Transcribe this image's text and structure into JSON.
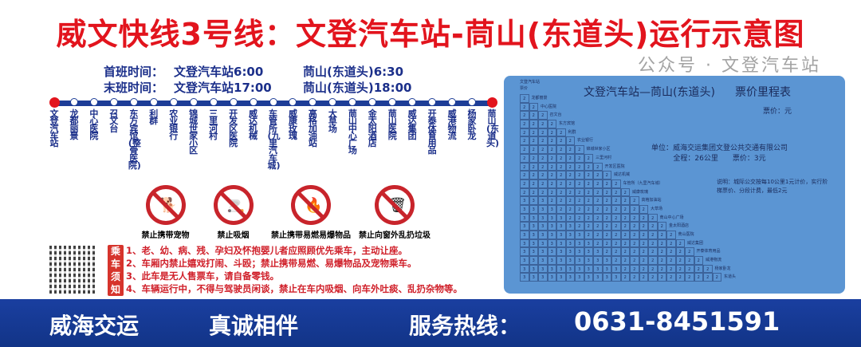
{
  "title": "威文快线3号线：文登汽车站-茼山(东道头)运行示意图",
  "schedule": {
    "first": {
      "label": "首班时间：",
      "from": "文登汽车站6:00",
      "to": "茼山(东道头)6:30"
    },
    "last": {
      "label": "末班时间：",
      "from": "文登汽车站17:00",
      "to": "茼山(东道头)18:00"
    }
  },
  "stations": [
    "文登汽车站",
    "龙都丽景",
    "中心医院",
    "召文台",
    "东方宾馆(整骨医院)",
    "利群",
    "农业银行",
    "锦城世家小区",
    "三里河村",
    "开发区医院",
    "威达机械",
    "车管所(九里汽车城)",
    "威康玫瑰",
    "高格加油站",
    "大草场",
    "茼山中心广场",
    "金太阳酒店",
    "茼山医院",
    "威达集团",
    "开泰体育用品",
    "威港物流",
    "杨家卧龙",
    "茼山(东道头)"
  ],
  "signs": [
    {
      "icon": "no-pets-icon",
      "label": "禁止携带宠物"
    },
    {
      "icon": "no-smoking-icon",
      "label": "禁止吸烟"
    },
    {
      "icon": "no-flammables-icon",
      "label": "禁止携带易燃易爆物品"
    },
    {
      "icon": "no-littering-icon",
      "label": "禁止向窗外乱扔垃圾"
    }
  ],
  "notice": {
    "tag": "乘车须知",
    "items": [
      "1、老、幼、病、残、孕妇及怀抱婴儿者应照顾优先乘车，主动让座。",
      "2、车厢内禁止嬉戏打闹、斗殴；禁止携带易燃、易爆物品及宠物乘车。",
      "3、此车是无人售票车，请自备零钱。",
      "4、车辆运行中，不得与驾驶员闲谈，禁止在车内吸烟、向车外吐痰、乱扔杂物等。"
    ]
  },
  "fare_table": {
    "title": "文登汽车站—茼山(东道头)",
    "title2": "票价里程表",
    "unit": "票价：元",
    "corner": [
      "文登汽车站",
      "票价"
    ],
    "company": "单位：威海交运集团文登公共交通有限公司",
    "summary": "全程：26公里　　票价：3元",
    "desc": "说明：城际公交按每10公里1元计价，实行阶梯票价、分段计费，最低2元",
    "rows": [
      {
        "name": "龙都丽景",
        "fares": "2"
      },
      {
        "name": "中心医院",
        "fares": "22"
      },
      {
        "name": "召文台",
        "fares": "222"
      },
      {
        "name": "东方宾馆",
        "fares": "2222"
      },
      {
        "name": "利群",
        "fares": "22222"
      },
      {
        "name": "农业银行",
        "fares": "222222"
      },
      {
        "name": "锦城世家小区",
        "fares": "2222222"
      },
      {
        "name": "三里河村",
        "fares": "22222222"
      },
      {
        "name": "开发区医院",
        "fares": "222222222"
      },
      {
        "name": "威达机械",
        "fares": "2222222222"
      },
      {
        "name": "车管所（九里汽车城）",
        "fares": "22222222222"
      },
      {
        "name": "威康玫瑰",
        "fares": "222222222222"
      },
      {
        "name": "高格加油站",
        "fares": "3332222222222"
      },
      {
        "name": "大草场",
        "fares": "33332222222222"
      },
      {
        "name": "茼山中心广场",
        "fares": "333332222222222"
      },
      {
        "name": "金太阳酒店",
        "fares": "3333332222222222"
      },
      {
        "name": "茼山医院",
        "fares": "33333332222222222"
      },
      {
        "name": "威达集团",
        "fares": "333333332222222222"
      },
      {
        "name": "开泰体育用品",
        "fares": "3333333332222222222"
      },
      {
        "name": "威港物流",
        "fares": "33333333332222222222"
      },
      {
        "name": "杨家卧龙",
        "fares": "333333333332222222222"
      },
      {
        "name": "东道头",
        "fares": "3333333333322222222222"
      }
    ]
  },
  "footer": {
    "slogan1": "威海交运",
    "slogan2": "真诚相伴",
    "hotline_label": "服务热线：",
    "hotline": "0631-8451591"
  },
  "watermark": "公众号 · 文登汽车站",
  "colors": {
    "title": "#e2141d",
    "route": "#1d3d97",
    "footer": "#1a3fa0",
    "panel": "#5b95d3"
  }
}
